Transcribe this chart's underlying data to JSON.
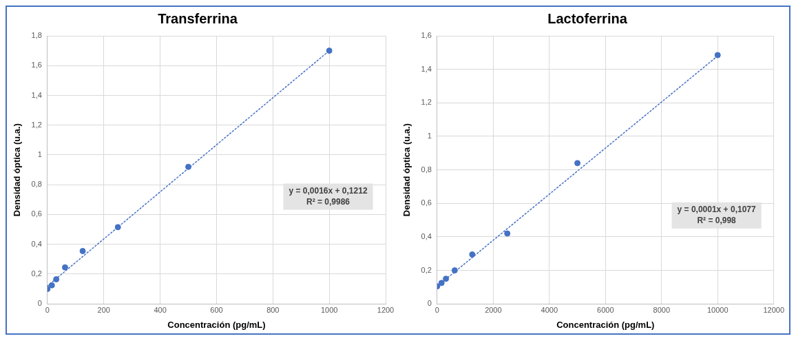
{
  "chart_data": [
    {
      "type": "scatter",
      "title": "Transferrina",
      "xlabel": "Concentración (pg/mL)",
      "ylabel": "Densidad óptica (u.a.)",
      "grid": true,
      "legend": false,
      "xlim": [
        0,
        1200
      ],
      "xticks": [
        0,
        200,
        400,
        600,
        800,
        1000,
        1200
      ],
      "ylim": [
        0,
        1.8
      ],
      "yticks": [
        {
          "value": 0,
          "label": "0"
        },
        {
          "value": 0.2,
          "label": "0,2"
        },
        {
          "value": 0.4,
          "label": "0,4"
        },
        {
          "value": 0.6,
          "label": "0,6"
        },
        {
          "value": 0.8,
          "label": "0,8"
        },
        {
          "value": 1,
          "label": "1"
        },
        {
          "value": 1.2,
          "label": "1,2"
        },
        {
          "value": 1.4,
          "label": "1,4"
        },
        {
          "value": 1.6,
          "label": "1,6"
        },
        {
          "value": 1.8,
          "label": "1,8"
        }
      ],
      "series": [
        {
          "type": "scatter",
          "color": "#4472c4",
          "marker": "circle",
          "x": [
            0,
            15.6,
            31.25,
            62.5,
            125,
            250,
            500,
            1000
          ],
          "values": [
            0.1,
            0.125,
            0.165,
            0.245,
            0.355,
            0.515,
            0.92,
            1.7
          ]
        },
        {
          "type": "line",
          "color": "#4472c4",
          "marker": "none",
          "line_style": "dotted",
          "x": [
            0,
            1000
          ],
          "values": [
            0.12,
            1.7
          ]
        }
      ],
      "annotations": [
        "y = 0,0016x + 0,1212",
        "R² = 0,9986"
      ]
    },
    {
      "type": "scatter",
      "title": "Lactoferrina",
      "xlabel": "Concentración (pg/mL)",
      "ylabel": "Densidad óptica (u.a.)",
      "grid": true,
      "legend": false,
      "xlim": [
        0,
        12000
      ],
      "xticks": [
        0,
        2000,
        4000,
        6000,
        8000,
        10000,
        12000
      ],
      "ylim": [
        0,
        1.6
      ],
      "yticks": [
        {
          "value": 0,
          "label": "0"
        },
        {
          "value": 0.2,
          "label": "0,2"
        },
        {
          "value": 0.4,
          "label": "0,4"
        },
        {
          "value": 0.6,
          "label": "0,6"
        },
        {
          "value": 0.8,
          "label": "0,8"
        },
        {
          "value": 1,
          "label": "1"
        },
        {
          "value": 1.2,
          "label": "1,2"
        },
        {
          "value": 1.4,
          "label": "1,4"
        },
        {
          "value": 1.6,
          "label": "1,6"
        }
      ],
      "series": [
        {
          "type": "scatter",
          "color": "#4472c4",
          "marker": "circle",
          "x": [
            0,
            156,
            312,
            625,
            1250,
            2500,
            5000,
            10000
          ],
          "values": [
            0.105,
            0.125,
            0.15,
            0.2,
            0.295,
            0.42,
            0.84,
            1.485
          ]
        },
        {
          "type": "line",
          "color": "#4472c4",
          "marker": "none",
          "line_style": "dotted",
          "x": [
            0,
            10000
          ],
          "values": [
            0.105,
            1.48
          ]
        }
      ],
      "annotations": [
        "y = 0,0001x + 0,1077",
        "R² = 0,998"
      ]
    }
  ]
}
